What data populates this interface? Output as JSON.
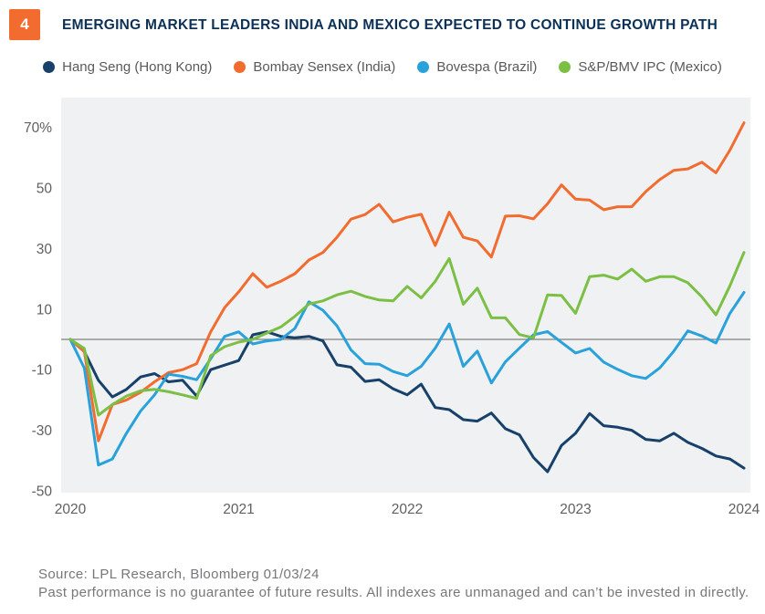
{
  "figure": {
    "badge": "4",
    "title": "EMERGING MARKET LEADERS INDIA AND MEXICO EXPECTED TO CONTINUE GROWTH PATH"
  },
  "colors": {
    "badge_bg": "#F26C2F",
    "title_text": "#0B3157",
    "plot_bg": "#EFF1F2",
    "zero_line": "#7D7F81",
    "tick_text": "#5E6062",
    "legend_text": "#58595B",
    "footer_text": "#76777A"
  },
  "footer": {
    "source_line": "Source: LPL Research, Bloomberg 01/03/24",
    "disclaimer_line": "Past performance is no guarantee of future results. All indexes are unmanaged and can’t be invested in directly."
  },
  "chart_data": {
    "type": "line",
    "title": "EMERGING MARKET LEADERS INDIA AND MEXICO EXPECTED TO CONTINUE GROWTH PATH",
    "x_unit": "month",
    "x_start": "2020-01",
    "x_end": "2024-01",
    "x_tick_labels": [
      "2020",
      "2021",
      "2022",
      "2023",
      "2024"
    ],
    "y_tick_labels": [
      "70%",
      "50",
      "30",
      "10",
      "-10",
      "-30",
      "-50"
    ],
    "y_tick_values": [
      70,
      50,
      30,
      10,
      -10,
      -30,
      -50
    ],
    "ylim": [
      -50,
      80
    ],
    "grid": "zero-line-only",
    "legend_position": "top",
    "series": [
      {
        "name": "Hang Seng (Hong Kong)",
        "color": "#17406A",
        "values": [
          0,
          -4,
          -13.5,
          -19,
          -16.5,
          -12.4,
          -11.3,
          -14,
          -13.5,
          -18.7,
          -10,
          -8.5,
          -7,
          1.5,
          2.5,
          1,
          0.5,
          1,
          -0.5,
          -8.4,
          -9.2,
          -13.9,
          -13.3,
          -16.3,
          -18.3,
          -14.8,
          -22.5,
          -23.2,
          -26.5,
          -27,
          -24.3,
          -29.5,
          -31.5,
          -39,
          -43.7,
          -35,
          -31,
          -24.5,
          -28.5,
          -29,
          -30,
          -33,
          -33.5,
          -31,
          -34,
          -36,
          -38.5,
          -39.5,
          -42.5
        ]
      },
      {
        "name": "Bombay Sensex (India)",
        "color": "#F26C2F",
        "values": [
          0,
          -4,
          -33.5,
          -21.5,
          -20,
          -17.5,
          -14,
          -11,
          -10,
          -8,
          2.5,
          10.5,
          15.7,
          21.7,
          17.2,
          19.2,
          21.7,
          26.2,
          28.7,
          33.7,
          39.7,
          41.2,
          44.6,
          38.8,
          40.3,
          41.3,
          31,
          42,
          33.7,
          32.5,
          27.2,
          40.7,
          40.8,
          39.8,
          44.8,
          51,
          46.3,
          46,
          42.8,
          43.8,
          43.8,
          48.8,
          52.8,
          55.8,
          56.3,
          58.5,
          55,
          62.5,
          71.5
        ]
      },
      {
        "name": "Bovespa (Brazil)",
        "color": "#29A1DB",
        "values": [
          0,
          -9.5,
          -41.5,
          -39.5,
          -31,
          -23.7,
          -18.3,
          -11.5,
          -12.2,
          -13.3,
          -6.4,
          1,
          2.5,
          -1.5,
          -0.5,
          0,
          3.6,
          12.4,
          9.6,
          4.5,
          -3.5,
          -8,
          -8.2,
          -10.6,
          -12,
          -8.9,
          -2.9,
          5.1,
          -8.9,
          -3.9,
          -14.4,
          -7.4,
          -2.9,
          1.5,
          2.6,
          -1,
          -4.5,
          -3,
          -7.5,
          -9.9,
          -12,
          -12.9,
          -9.4,
          -3.9,
          2.8,
          1.1,
          -1.2,
          8.6,
          15.5
        ]
      },
      {
        "name": "S&P/BMV IPC (Mexico)",
        "color": "#7BBF44",
        "values": [
          0,
          -3,
          -25,
          -21.5,
          -18.7,
          -17,
          -16.5,
          -17.3,
          -18.3,
          -19.5,
          -5.4,
          -2.4,
          -0.9,
          0,
          2.1,
          4.1,
          7.6,
          11.7,
          12.7,
          14.7,
          15.9,
          14.2,
          13,
          12.7,
          17.5,
          13.7,
          19.2,
          26.7,
          11.6,
          16.9,
          7.1,
          7.1,
          1.6,
          0.5,
          14.7,
          14.5,
          8.6,
          20.7,
          21.2,
          19.9,
          23.2,
          19.2,
          20.7,
          20.7,
          18.7,
          14,
          8.1,
          17.7,
          28.7
        ]
      }
    ]
  }
}
